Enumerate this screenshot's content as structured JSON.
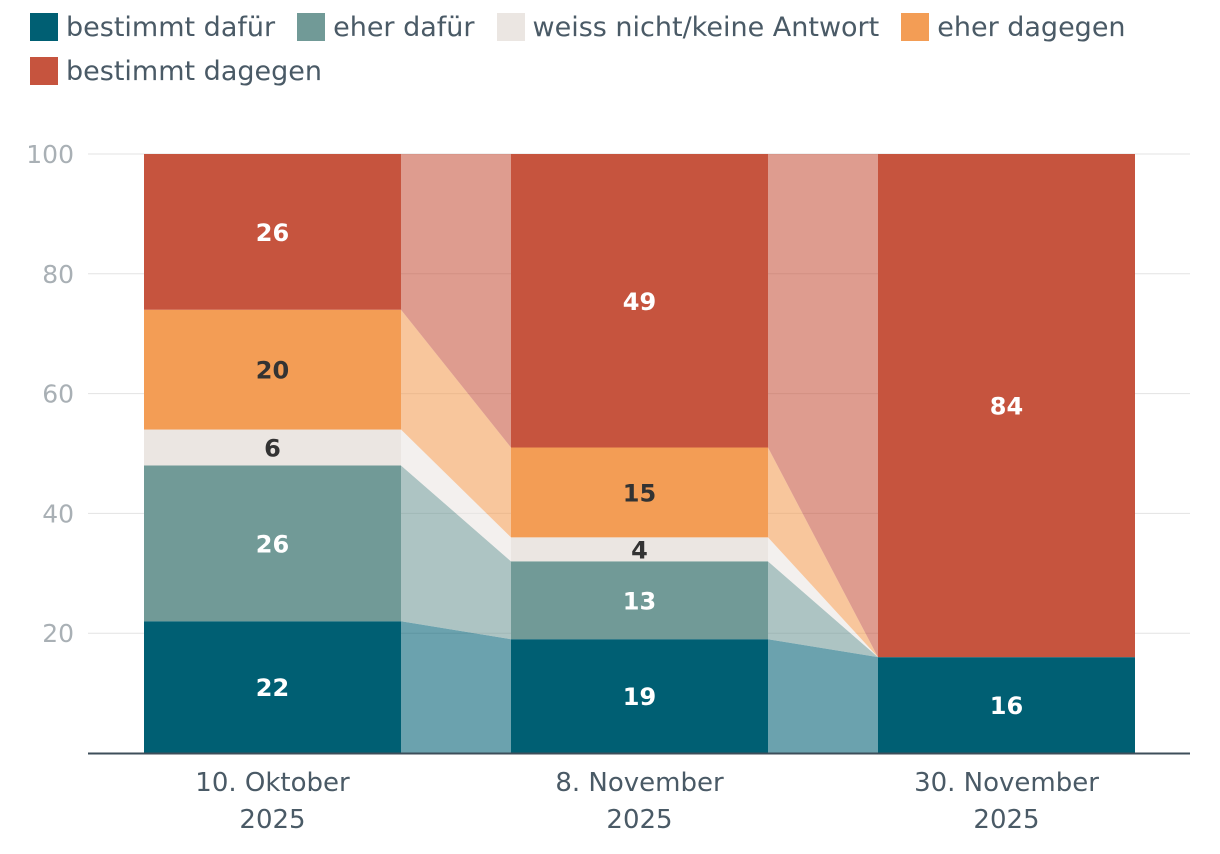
{
  "chart_data": {
    "type": "bar",
    "stacked": true,
    "categories": [
      [
        "10. Oktober",
        "2025"
      ],
      [
        "8. November",
        "2025"
      ],
      [
        "30. November",
        "2025"
      ]
    ],
    "series": [
      {
        "name": "bestimmt dafür",
        "color": "#005f73",
        "label_color": "#ffffff",
        "values": [
          22,
          19,
          16
        ]
      },
      {
        "name": "eher dafür",
        "color": "#719a97",
        "label_color": "#ffffff",
        "values": [
          26,
          13,
          0
        ]
      },
      {
        "name": "weiss nicht/keine Antwort",
        "color": "#ebe6e2",
        "label_color": "#333333",
        "values": [
          6,
          4,
          0
        ]
      },
      {
        "name": "eher dagegen",
        "color": "#f39d55",
        "label_color": "#333333",
        "values": [
          20,
          15,
          0
        ]
      },
      {
        "name": "bestimmt dagegen",
        "color": "#c6543e",
        "label_color": "#ffffff",
        "values": [
          26,
          49,
          84
        ]
      }
    ],
    "y_ticks": [
      20,
      40,
      60,
      80,
      100
    ],
    "ylim": [
      0,
      100
    ],
    "grid": true,
    "legend_position": "top-left",
    "title": "",
    "xlabel": "",
    "ylabel": ""
  }
}
